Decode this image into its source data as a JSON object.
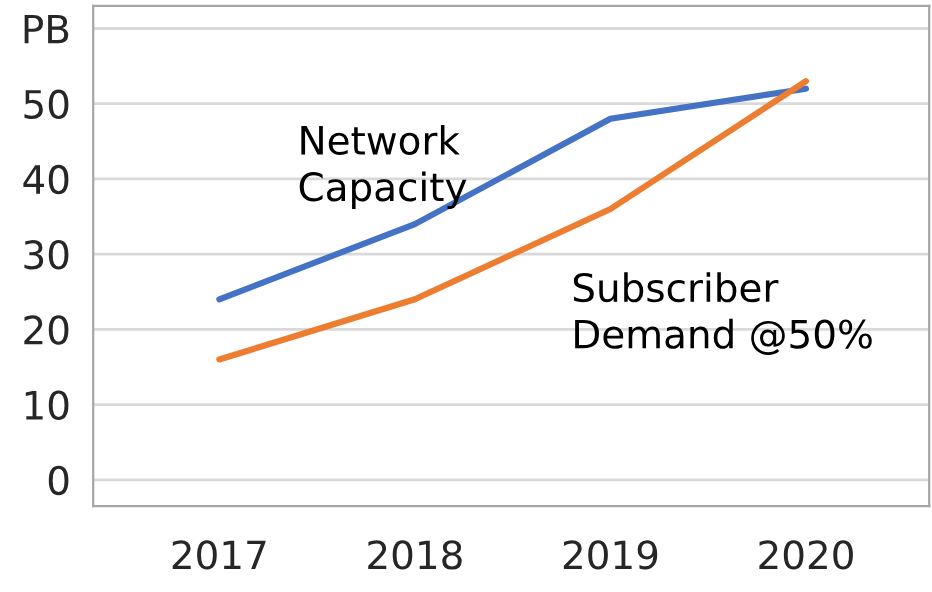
{
  "chart_data": {
    "type": "line",
    "categories": [
      "2017",
      "2018",
      "2019",
      "2020"
    ],
    "series": [
      {
        "name": "Network\nCapacity",
        "color": "#4472c4",
        "values": [
          24,
          34,
          48,
          52
        ]
      },
      {
        "name": "Subscriber\nDemand @50%",
        "color": "#ed7d31",
        "values": [
          16,
          24,
          36,
          53
        ]
      }
    ],
    "ylim": [
      -3.5,
      63
    ],
    "yticks": [
      0,
      10,
      20,
      30,
      40,
      50,
      {
        "value": 60,
        "label": "PB"
      }
    ],
    "grid": "y",
    "legend": false,
    "marker": "none",
    "line_style": "solid"
  }
}
